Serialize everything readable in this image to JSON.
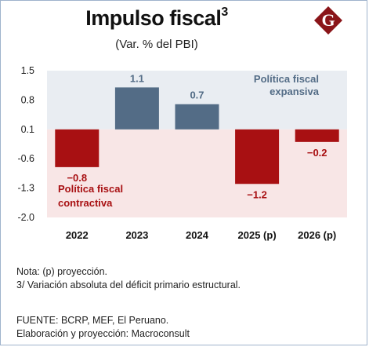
{
  "title": "Impulso fiscal",
  "title_sup": "3",
  "subtitle": "(Var. % del PBI)",
  "logo_letter": "G",
  "colors": {
    "positive": "#536c86",
    "negative": "#a81012",
    "expansive_bg": "#e9edf2",
    "contractive_bg": "#f8e6e6",
    "logo": "#8a1519",
    "expansive_text": "#536c86",
    "contractive_text": "#a81012"
  },
  "chart_data": {
    "type": "bar",
    "title": "Impulso fiscal",
    "categories": [
      "2022",
      "2023",
      "2024",
      "2025 (p)",
      "2026 (p)"
    ],
    "values": [
      -0.8,
      1.1,
      0.7,
      -1.2,
      -0.2
    ],
    "value_labels": [
      "−0.8",
      "1.1",
      "0.7",
      "−1.2",
      "−0.2"
    ],
    "yticks": [
      "1.5",
      "0.8",
      "0.1",
      "-0.6",
      "-1.3",
      "-2.0"
    ],
    "ytick_values": [
      1.5,
      0.8,
      0.1,
      -0.6,
      -1.3,
      -2.0
    ],
    "ylim": [
      -2.0,
      1.5
    ],
    "baseline": 0.1,
    "grid": false,
    "annotations": {
      "expansive": [
        "Política fiscal",
        "expansiva"
      ],
      "contractive": [
        "Política fiscal",
        "contractiva"
      ]
    }
  },
  "notes": {
    "line1": "Nota: (p) proyección.",
    "line2": "3/ Variación absoluta del déficit primario estructural."
  },
  "sources": {
    "line1": "FUENTE: BCRP, MEF, El Peruano.",
    "line2": "Elaboración y proyección: Macroconsult"
  }
}
